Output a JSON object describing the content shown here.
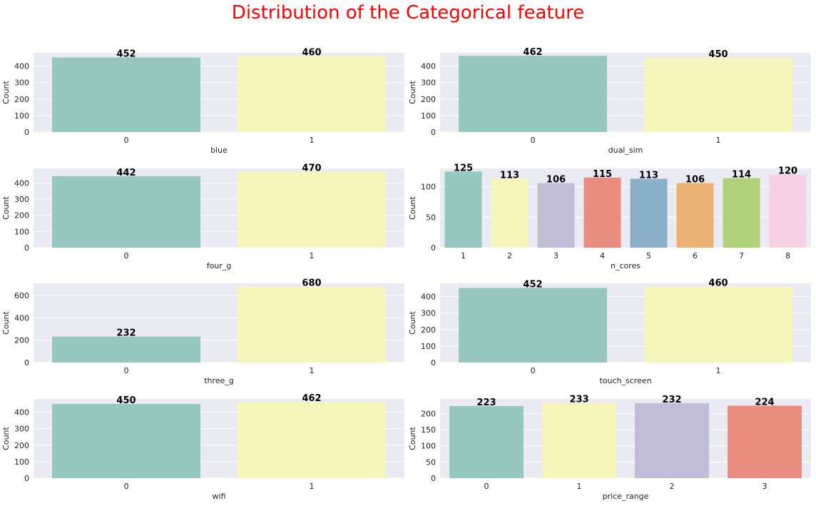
{
  "figure": {
    "title": "Distribution of the Categorical feature"
  },
  "palette": [
    "#96c8c0",
    "#f6f6bc",
    "#c1bdd6",
    "#eb8c80",
    "#8aafc9",
    "#ebb273",
    "#b0d179",
    "#f7d1e4"
  ],
  "chart_data": [
    {
      "type": "bar",
      "xlabel": "blue",
      "ylabel": "Count",
      "categories": [
        "0",
        "1"
      ],
      "values": [
        452,
        460
      ],
      "ylim": [
        0,
        480
      ],
      "yticks": [
        0,
        100,
        200,
        300,
        400
      ],
      "grid": true
    },
    {
      "type": "bar",
      "xlabel": "dual_sim",
      "ylabel": "Count",
      "categories": [
        "0",
        "1"
      ],
      "values": [
        462,
        450
      ],
      "ylim": [
        0,
        480
      ],
      "yticks": [
        0,
        100,
        200,
        300,
        400
      ],
      "grid": true
    },
    {
      "type": "bar",
      "xlabel": "four_g",
      "ylabel": "Count",
      "categories": [
        "0",
        "1"
      ],
      "values": [
        442,
        470
      ],
      "ylim": [
        0,
        490
      ],
      "yticks": [
        0,
        100,
        200,
        300,
        400
      ],
      "grid": true
    },
    {
      "type": "bar",
      "xlabel": "n_cores",
      "ylabel": "Count",
      "categories": [
        "1",
        "2",
        "3",
        "4",
        "5",
        "6",
        "7",
        "8"
      ],
      "values": [
        125,
        113,
        106,
        115,
        113,
        106,
        114,
        120
      ],
      "ylim": [
        0,
        130
      ],
      "yticks": [
        0,
        50,
        100
      ],
      "grid": true
    },
    {
      "type": "bar",
      "xlabel": "three_g",
      "ylabel": "Count",
      "categories": [
        "0",
        "1"
      ],
      "values": [
        232,
        680
      ],
      "ylim": [
        0,
        710
      ],
      "yticks": [
        0,
        200,
        400,
        600
      ],
      "grid": true
    },
    {
      "type": "bar",
      "xlabel": "touch_screen",
      "ylabel": "Count",
      "categories": [
        "0",
        "1"
      ],
      "values": [
        452,
        460
      ],
      "ylim": [
        0,
        480
      ],
      "yticks": [
        0,
        100,
        200,
        300,
        400
      ],
      "grid": true
    },
    {
      "type": "bar",
      "xlabel": "wifi",
      "ylabel": "Count",
      "categories": [
        "0",
        "1"
      ],
      "values": [
        450,
        462
      ],
      "ylim": [
        0,
        480
      ],
      "yticks": [
        0,
        100,
        200,
        300,
        400
      ],
      "grid": true
    },
    {
      "type": "bar",
      "xlabel": "price_range",
      "ylabel": "Count",
      "categories": [
        "0",
        "1",
        "2",
        "3"
      ],
      "values": [
        223,
        233,
        232,
        224
      ],
      "ylim": [
        0,
        245
      ],
      "yticks": [
        0,
        50,
        100,
        150,
        200
      ],
      "grid": true
    }
  ]
}
